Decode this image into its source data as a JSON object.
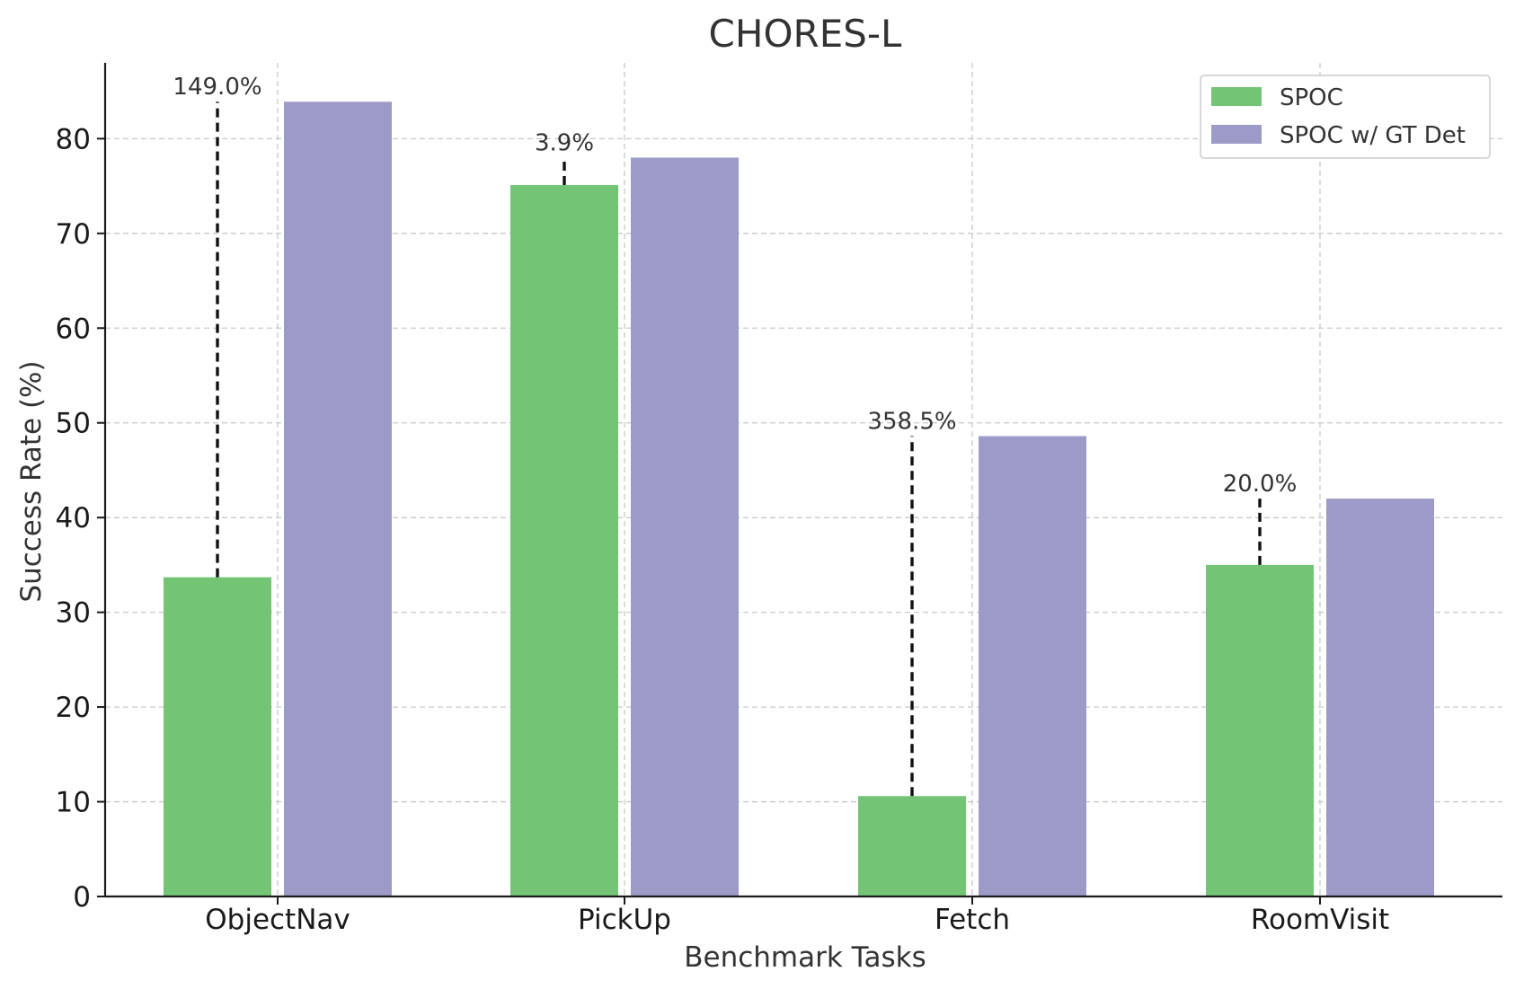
{
  "chart_data": {
    "type": "bar",
    "title": "CHORES-L",
    "xlabel": "Benchmark Tasks",
    "ylabel": "Success Rate (%)",
    "ylim": [
      0,
      88
    ],
    "yticks": [
      0,
      10,
      20,
      30,
      40,
      50,
      60,
      70,
      80
    ],
    "grid": true,
    "legend_position": "top-right",
    "categories": [
      "ObjectNav",
      "PickUp",
      "Fetch",
      "RoomVisit"
    ],
    "series": [
      {
        "name": "SPOC",
        "color": "#74c476",
        "values": [
          33.7,
          75.1,
          10.6,
          35.0
        ]
      },
      {
        "name": "SPOC w/ GT Det",
        "color": "#9e9ac8",
        "values": [
          83.9,
          78.0,
          48.6,
          42.0
        ]
      }
    ],
    "annotations": [
      {
        "category": "ObjectNav",
        "label": "149.0%",
        "from": 33.7,
        "to": 83.9
      },
      {
        "category": "PickUp",
        "label": "3.9%",
        "from": 75.1,
        "to": 78.0
      },
      {
        "category": "Fetch",
        "label": "358.5%",
        "from": 10.6,
        "to": 48.6
      },
      {
        "category": "RoomVisit",
        "label": "20.0%",
        "from": 35.0,
        "to": 42.0
      }
    ]
  }
}
